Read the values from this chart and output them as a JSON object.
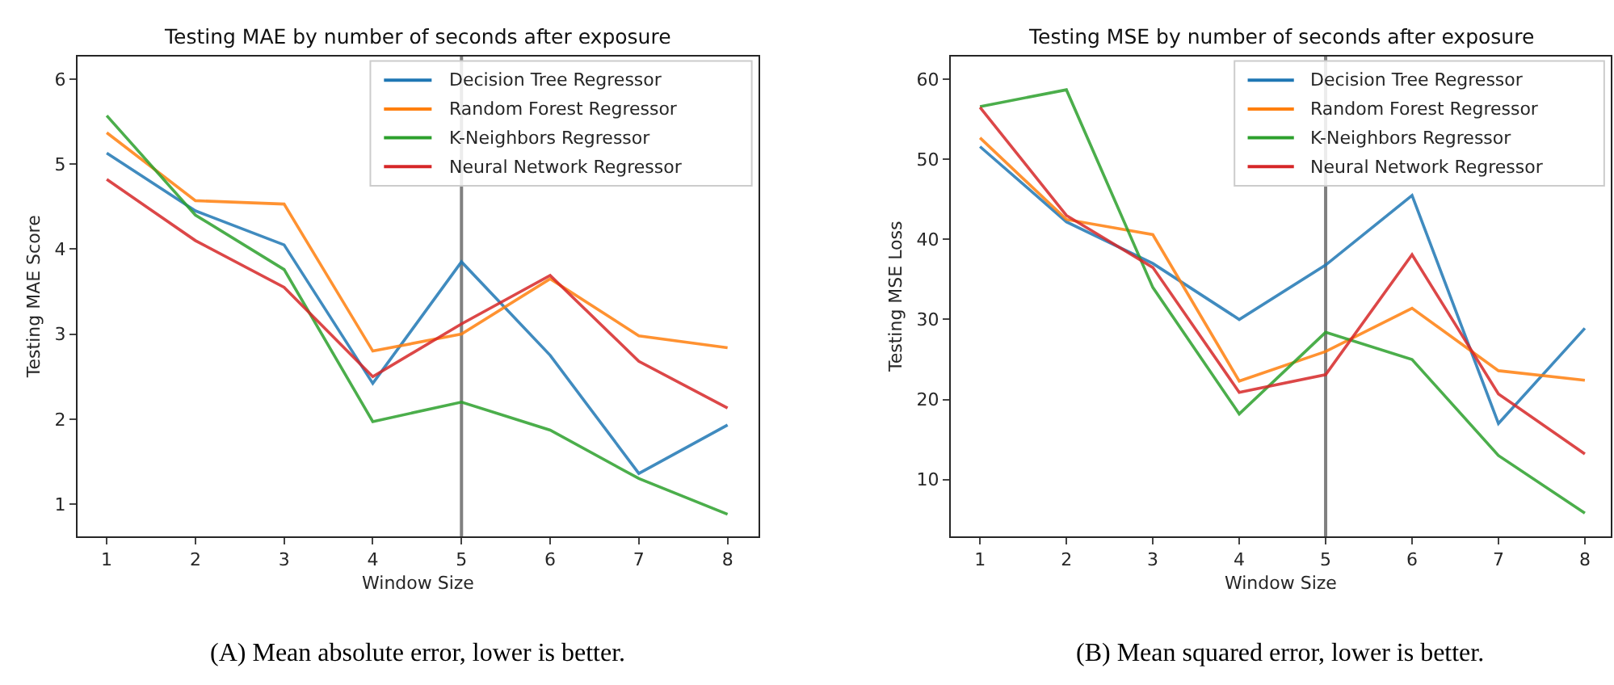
{
  "chart_data": [
    {
      "type": "line",
      "title": "Testing MAE by number of seconds after exposure",
      "xlabel": "Window Size",
      "ylabel": "Testing MAE Score",
      "x": [
        1,
        2,
        3,
        4,
        5,
        6,
        7,
        8
      ],
      "xlim": [
        0.67,
        8.35
      ],
      "xticks": [
        1,
        2,
        3,
        4,
        5,
        6,
        7,
        8
      ],
      "ylim": [
        0.62,
        6.27
      ],
      "yticks": [
        1,
        2,
        3,
        4,
        5,
        6
      ],
      "legend": "top right",
      "grid": false,
      "marker": "none",
      "line_style": "solid",
      "ref_lines": [
        {
          "axis": "x",
          "value": 5,
          "color": "#808080"
        }
      ],
      "annotations": [
        "(A) Mean absolute error, lower is better."
      ],
      "series": [
        {
          "name": "Decision Tree Regressor",
          "color": "#1f77b4",
          "values": [
            5.13,
            4.45,
            4.05,
            2.42,
            3.85,
            2.75,
            1.36,
            1.93
          ]
        },
        {
          "name": "Random Forest Regressor",
          "color": "#ff7f0e",
          "values": [
            5.37,
            4.57,
            4.53,
            2.8,
            3.0,
            3.65,
            2.98,
            2.84
          ]
        },
        {
          "name": "K-Neighbors Regressor",
          "color": "#2ca02c",
          "values": [
            5.57,
            4.4,
            3.76,
            1.97,
            2.2,
            1.87,
            1.3,
            0.88
          ]
        },
        {
          "name": "Neural Network Regressor",
          "color": "#d62728",
          "values": [
            4.82,
            4.1,
            3.55,
            2.5,
            3.12,
            3.69,
            2.68,
            2.13
          ]
        }
      ]
    },
    {
      "type": "line",
      "title": "Testing MSE by number of seconds after exposure",
      "xlabel": "Window Size",
      "ylabel": "Testing MSE Loss",
      "x": [
        1,
        2,
        3,
        4,
        5,
        6,
        7,
        8
      ],
      "xlim": [
        0.66,
        8.3
      ],
      "xticks": [
        1,
        2,
        3,
        4,
        5,
        6,
        7,
        8
      ],
      "ylim": [
        2.9,
        62.9
      ],
      "yticks": [
        10,
        20,
        30,
        40,
        50,
        60
      ],
      "legend": "top right",
      "grid": false,
      "marker": "none",
      "line_style": "solid",
      "ref_lines": [
        {
          "axis": "x",
          "value": 5,
          "color": "#808080"
        }
      ],
      "annotations": [
        "(B) Mean squared error, lower is better."
      ],
      "series": [
        {
          "name": "Decision Tree Regressor",
          "color": "#1f77b4",
          "values": [
            51.6,
            42.2,
            37.0,
            30.0,
            36.8,
            45.5,
            17.0,
            28.9
          ]
        },
        {
          "name": "Random Forest Regressor",
          "color": "#ff7f0e",
          "values": [
            52.7,
            42.5,
            40.6,
            22.3,
            26.0,
            31.4,
            23.6,
            22.4
          ]
        },
        {
          "name": "K-Neighbors Regressor",
          "color": "#2ca02c",
          "values": [
            56.6,
            58.7,
            34.0,
            18.2,
            28.4,
            25.0,
            13.0,
            5.8
          ]
        },
        {
          "name": "Neural Network Regressor",
          "color": "#d62728",
          "values": [
            56.5,
            43.0,
            36.5,
            20.9,
            23.1,
            38.1,
            20.7,
            13.2
          ]
        }
      ]
    }
  ]
}
